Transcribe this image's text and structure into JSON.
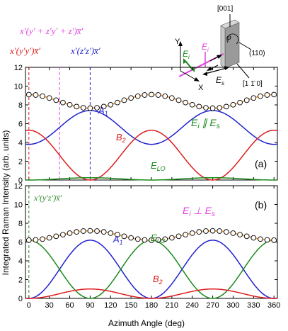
{
  "legend_top": {
    "line1": "x′(y′ + z′y′ + z′)x̅′",
    "line2_a": "x′(y′y′)x̅′",
    "line2_b": "x′(z′z′)x̅′"
  },
  "geometry": {
    "dir_001": "[001]",
    "dir_110": "(110)",
    "dir_1m10": "[1 1̄ 0]",
    "axis_y": "Y",
    "axis_x": "X",
    "ei": "E",
    "ei_sub": "i",
    "es": "E",
    "es_sub": "s",
    "phi": "φ"
  },
  "axes": {
    "ylabel": "Integrated Raman Intensity (arb. units)",
    "xlabel": "Azimuth Angle (deg)"
  },
  "colors": {
    "A1": "#1f1fd0",
    "B2": "#dd1c1c",
    "ELO": "#1a8a1a",
    "total": "#f0a040",
    "pink": "#e040e0",
    "darkgreen": "#2a8a2a"
  },
  "chart_data": [
    {
      "type": "line",
      "panel": "(a)",
      "condition": "E_i ∥ E_s",
      "xlim": [
        -5,
        365
      ],
      "ylim": [
        0,
        12
      ],
      "xticks": [
        0,
        30,
        60,
        90,
        120,
        150,
        180,
        210,
        240,
        270,
        300,
        330,
        360
      ],
      "yticks": [
        0,
        2,
        4,
        6,
        8,
        10,
        12
      ],
      "vlines": [
        {
          "x": 0,
          "color": "#dd1c1c"
        },
        {
          "x": 45,
          "color": "#e040e0"
        },
        {
          "x": 90,
          "color": "#1f1fd0"
        }
      ],
      "series": [
        {
          "name": "A1",
          "label": "A",
          "sub": "1",
          "A": 3.8,
          "B": 3.6,
          "k": 2,
          "phase": 0,
          "func": "A1"
        },
        {
          "name": "B2",
          "label": "B",
          "sub": "2",
          "A": 5.3,
          "B": 0,
          "k": 2,
          "phase": 0,
          "func": "cos2"
        },
        {
          "name": "ELO",
          "label": "E",
          "sub": "LO",
          "A": 0.25,
          "B": 0,
          "k": 4,
          "phase": 0,
          "func": "sin2"
        },
        {
          "name": "Total"
        }
      ],
      "points_step_deg": 10
    },
    {
      "type": "line",
      "panel": "(b)",
      "condition": "E_i ⊥ E_s",
      "inset_label": "x′(y′z′)x̅′",
      "xlim": [
        -5,
        365
      ],
      "ylim": [
        0,
        12
      ],
      "xticks": [
        0,
        30,
        60,
        90,
        120,
        150,
        180,
        210,
        240,
        270,
        300,
        330,
        360
      ],
      "yticks": [
        0,
        2,
        4,
        6,
        8,
        10,
        12
      ],
      "vlines": [
        {
          "x": 0,
          "color": "#2a8a2a"
        }
      ],
      "series": [
        {
          "name": "A1",
          "label": "A",
          "sub": "1",
          "A": 6.2,
          "B": 0,
          "k": 2,
          "phase": 0,
          "func": "sin2"
        },
        {
          "name": "ELO",
          "label": "E",
          "sub": "LO",
          "A": 6.2,
          "B": 0,
          "k": 2,
          "phase": 0,
          "func": "cos2"
        },
        {
          "name": "B2",
          "label": "B",
          "sub": "2",
          "A": 1.0,
          "B": 0,
          "k": 2,
          "phase": 0,
          "func": "sin2"
        },
        {
          "name": "Total"
        }
      ],
      "points_step_deg": 10
    }
  ]
}
